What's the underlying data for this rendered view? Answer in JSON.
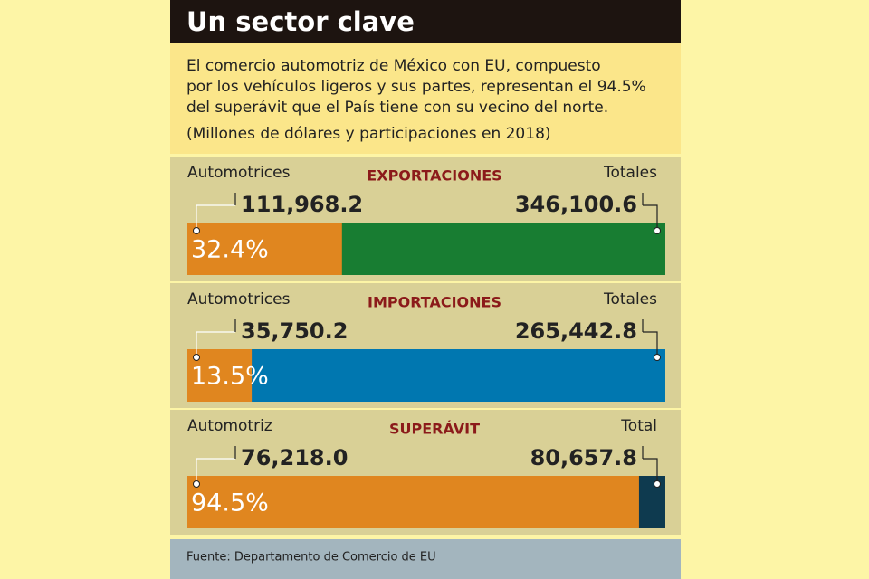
{
  "header": {
    "title": "Un sector clave",
    "description": [
      "El comercio automotriz de México con EU, compuesto",
      "por los vehículos ligeros y sus partes, representan el 94.5%",
      "del superávit que el País tiene con su vecino del norte."
    ],
    "units": "(Millones de dólares y participaciones en 2018)"
  },
  "chart_data": [
    {
      "type": "bar",
      "title": "EXPORTACIONES",
      "categories": [
        "Automotrices",
        "Totales"
      ],
      "values": [
        111968.2,
        346100.6
      ],
      "value_labels": [
        "111,968.2",
        "346,100.6"
      ],
      "share": {
        "value": 32.4,
        "label": "32.4%"
      },
      "colors": [
        "#e0861f",
        "#187d32"
      ]
    },
    {
      "type": "bar",
      "title": "IMPORTACIONES",
      "categories": [
        "Automotrices",
        "Totales"
      ],
      "values": [
        35750.2,
        265442.8
      ],
      "value_labels": [
        "35,750.2",
        "265,442.8"
      ],
      "share": {
        "value": 13.5,
        "label": "13.5%"
      },
      "colors": [
        "#e0861f",
        "#0077b0"
      ]
    },
    {
      "type": "bar",
      "title": "SUPERÁVIT",
      "categories": [
        "Automotriz",
        "Total"
      ],
      "values": [
        76218.0,
        80657.8
      ],
      "value_labels": [
        "76,218.0",
        "80,657.8"
      ],
      "share": {
        "value": 94.5,
        "label": "94.5%"
      },
      "colors": [
        "#e0861f",
        "#0e3a4f"
      ]
    }
  ],
  "source": "Fuente: Departamento de Comercio de EU"
}
